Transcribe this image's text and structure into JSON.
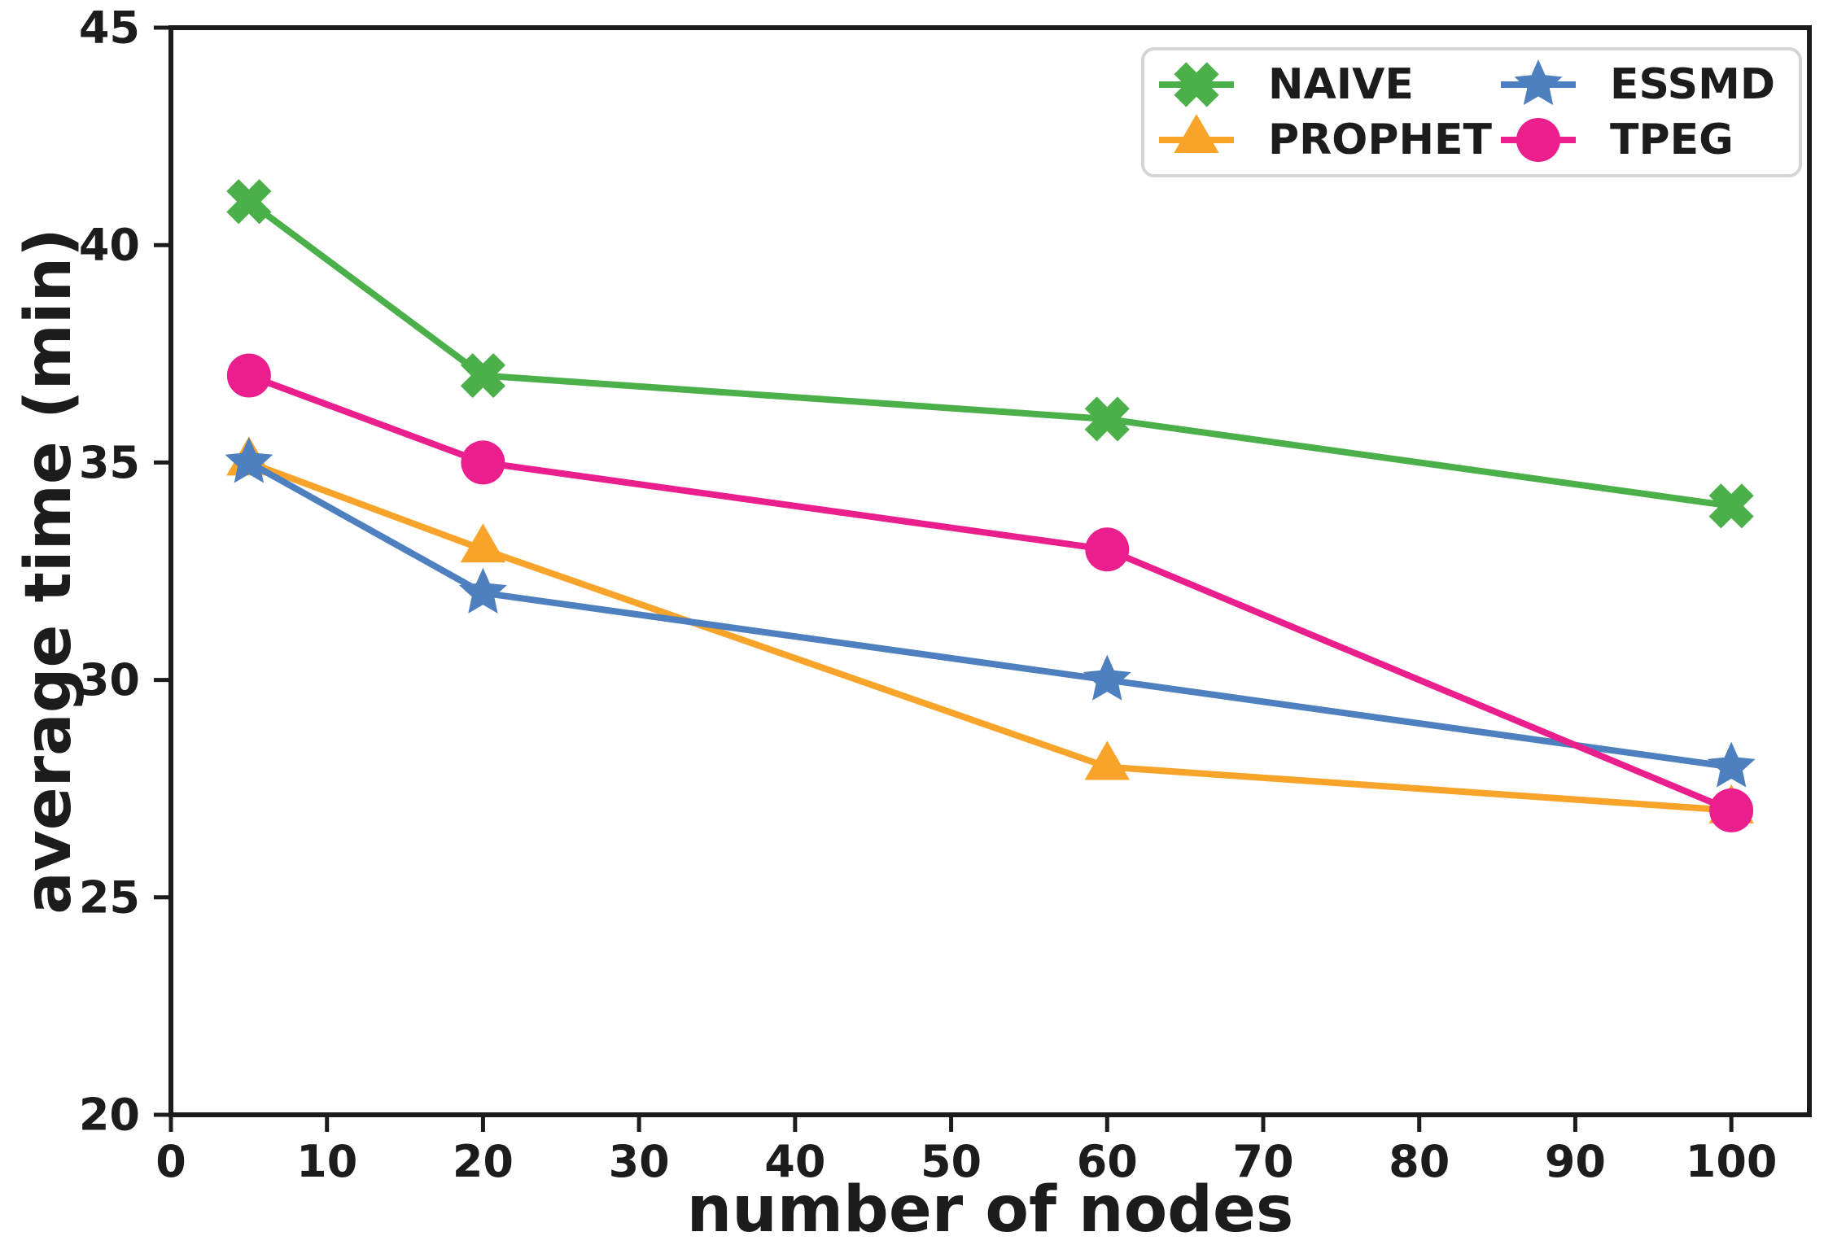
{
  "figure": {
    "background": "#ffffff",
    "axis_color": "#1c1c1c",
    "legend_border_color": "#d5d5d5",
    "legend_background": "#ffffff"
  },
  "chart_data": {
    "type": "line",
    "title": "",
    "xlabel": "number of nodes",
    "ylabel": "average time (min)",
    "xlim": [
      0,
      105
    ],
    "ylim": [
      20,
      45
    ],
    "x_ticks": [
      0,
      10,
      20,
      30,
      40,
      50,
      60,
      70,
      80,
      90,
      100
    ],
    "y_ticks": [
      20,
      25,
      30,
      35,
      40,
      45
    ],
    "grid": false,
    "legend_position": "upper right",
    "legend_columns": 2,
    "x": [
      5,
      20,
      60,
      100
    ],
    "series": [
      {
        "name": "NAIVE",
        "color": "#4cb04a",
        "marker": "x-cross",
        "values": [
          41,
          37,
          36,
          34
        ]
      },
      {
        "name": "PROPHET",
        "color": "#f8a329",
        "marker": "triangle-up",
        "values": [
          35,
          33,
          28,
          27
        ]
      },
      {
        "name": "ESSMD",
        "color": "#4e7fbf",
        "marker": "star",
        "values": [
          35,
          32,
          30,
          28
        ]
      },
      {
        "name": "TPEG",
        "color": "#ea1e8c",
        "marker": "circle",
        "values": [
          37,
          35,
          33,
          27
        ]
      }
    ]
  }
}
